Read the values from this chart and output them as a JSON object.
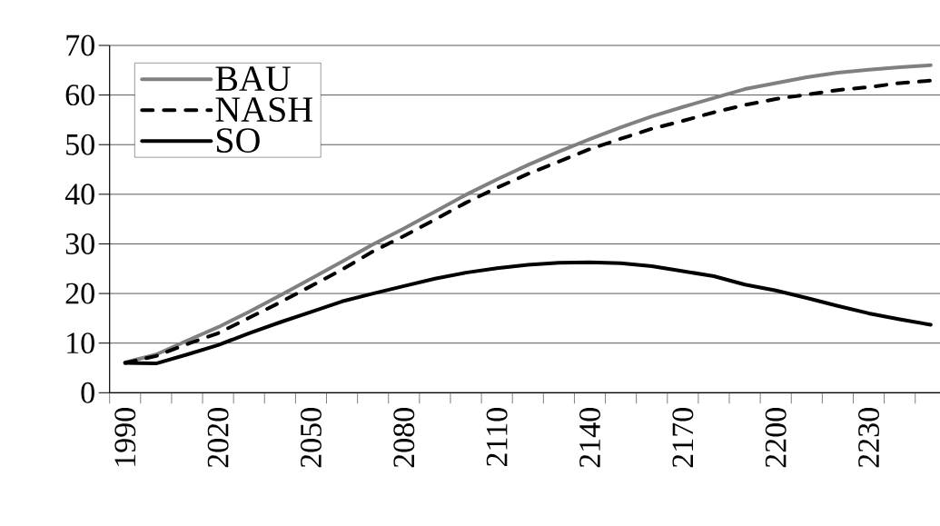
{
  "chart_data": {
    "type": "line",
    "categories": [
      "1990",
      null,
      null,
      "2020",
      null,
      null,
      "2050",
      null,
      null,
      "2080",
      null,
      null,
      "2110",
      null,
      null,
      "2140",
      null,
      null,
      "2170",
      null,
      null,
      "2200",
      null,
      null,
      "2230",
      null,
      null
    ],
    "series": [
      {
        "name": "BAU",
        "color": "#808080",
        "line_style": "solid",
        "values": [
          6.1,
          7.7,
          10.5,
          13.2,
          16.3,
          19.6,
          23.0,
          26.4,
          29.9,
          33.1,
          36.5,
          39.9,
          43.0,
          45.9,
          48.6,
          51.1,
          53.5,
          55.7,
          57.6,
          59.4,
          61.2,
          62.4,
          63.6,
          64.5,
          65.1,
          65.6,
          66.0
        ]
      },
      {
        "name": "NASH",
        "color": "#000000",
        "line_style": "dashed",
        "values": [
          6.0,
          7.4,
          9.8,
          12.0,
          15.1,
          18.2,
          21.5,
          24.8,
          28.5,
          31.6,
          34.9,
          38.3,
          41.3,
          44.1,
          46.6,
          49.1,
          51.2,
          53.2,
          54.8,
          56.5,
          58.0,
          59.2,
          60.1,
          61.0,
          61.6,
          62.4,
          62.9
        ]
      },
      {
        "name": "SO",
        "color": "#000000",
        "line_style": "solid",
        "values": [
          6.0,
          5.9,
          7.7,
          9.6,
          12.0,
          14.2,
          16.3,
          18.4,
          20.0,
          21.5,
          23.0,
          24.2,
          25.1,
          25.8,
          26.2,
          26.3,
          26.1,
          25.5,
          24.5,
          23.5,
          21.8,
          20.6,
          19.1,
          17.5,
          16.0,
          14.8,
          13.7
        ]
      }
    ],
    "ylim": [
      0,
      70
    ],
    "yticks": [
      0,
      10,
      20,
      30,
      40,
      50,
      60,
      70
    ],
    "grid": "y",
    "legend": "top left"
  }
}
